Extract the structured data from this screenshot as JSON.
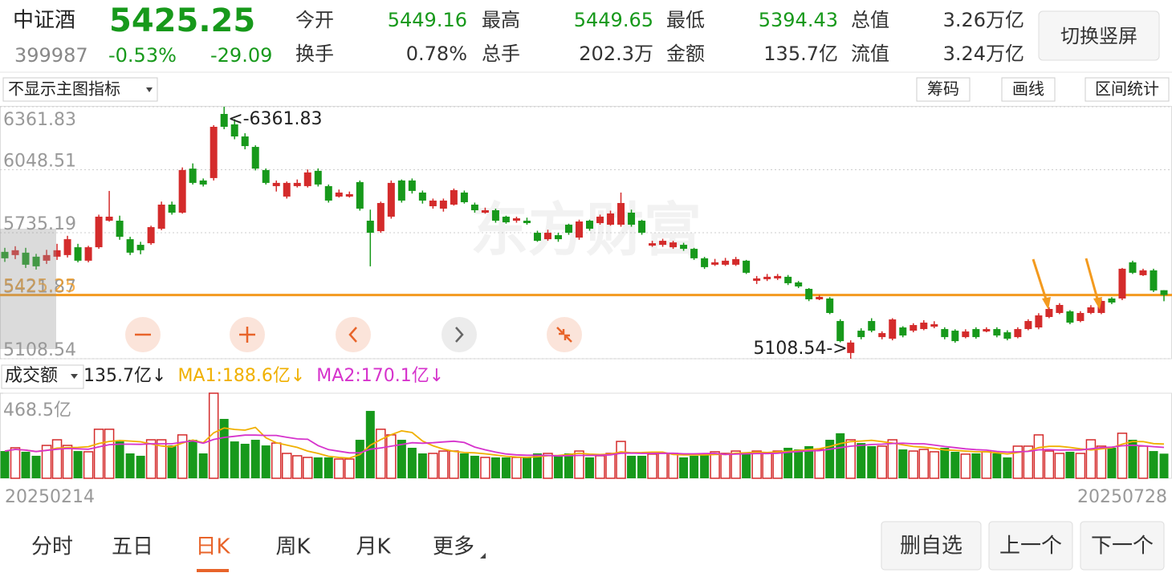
{
  "header": {
    "name": "中证酒",
    "price": "5425.25",
    "code": "399987",
    "change_pct": "-0.53%",
    "change": "-29.09",
    "stats": [
      [
        "今开",
        "5449.16"
      ],
      [
        "最高",
        "5449.65"
      ],
      [
        "最低",
        "5394.43"
      ],
      [
        "总值",
        "3.26万亿"
      ],
      [
        "换手",
        "0.78%"
      ],
      [
        "总手",
        "202.3万"
      ],
      [
        "金额",
        "135.7亿"
      ],
      [
        "流值",
        "3.24万亿"
      ]
    ],
    "button": "切换竖屏"
  },
  "toolbar": {
    "indicator": "不显示主图指标",
    "buttons": [
      "筹码",
      "画线",
      "区间统计"
    ]
  },
  "chart_data": [
    {
      "type": "candlestick",
      "watermark": "东方财富",
      "up_color": "#d42b2b",
      "down_color": "#17991b",
      "ylim": [
        5108.54,
        6361.83
      ],
      "yticks": [
        5108.54,
        5421.87,
        5735.19,
        6048.51,
        6361.83
      ],
      "grid": true,
      "price_line": {
        "value": 5425.25,
        "color": "#f39a1e"
      },
      "annotations": {
        "max": "<-6361.83",
        "min": "5108.54->"
      },
      "candles": [
        [
          5640,
          5660,
          5590,
          5608
        ],
        [
          5624,
          5668,
          5604,
          5648
        ],
        [
          5636,
          5660,
          5560,
          5576
        ],
        [
          5616,
          5630,
          5552,
          5568
        ],
        [
          5596,
          5650,
          5580,
          5624
        ],
        [
          5616,
          5680,
          5600,
          5648
        ],
        [
          5624,
          5720,
          5612,
          5703
        ],
        [
          5663,
          5680,
          5588,
          5596
        ],
        [
          5596,
          5670,
          5588,
          5663
        ],
        [
          5663,
          5825,
          5655,
          5815
        ],
        [
          5795,
          5943,
          5790,
          5815
        ],
        [
          5795,
          5820,
          5700,
          5715
        ],
        [
          5703,
          5715,
          5624,
          5636
        ],
        [
          5675,
          5690,
          5628,
          5648
        ],
        [
          5683,
          5770,
          5675,
          5763
        ],
        [
          5755,
          5890,
          5748,
          5875
        ],
        [
          5875,
          5890,
          5825,
          5835
        ],
        [
          5835,
          6060,
          5830,
          6047
        ],
        [
          6054,
          6080,
          5975,
          5983
        ],
        [
          5995,
          6005,
          5965,
          5975
        ],
        [
          6007,
          6270,
          5995,
          6262
        ],
        [
          6326,
          6361.83,
          6250,
          6262
        ],
        [
          6274,
          6300,
          6200,
          6214
        ],
        [
          6214,
          6230,
          6150,
          6166
        ],
        [
          6162,
          6170,
          6045,
          6054
        ],
        [
          6047,
          6055,
          5975,
          5983
        ],
        [
          5967,
          5995,
          5940,
          5983
        ],
        [
          5915,
          5990,
          5905,
          5983
        ],
        [
          5967,
          6000,
          5960,
          5983
        ],
        [
          5967,
          6050,
          5960,
          6035
        ],
        [
          6043,
          6055,
          5965,
          5975
        ],
        [
          5967,
          5975,
          5885,
          5895
        ],
        [
          5915,
          5950,
          5910,
          5935
        ],
        [
          5915,
          5940,
          5910,
          5927
        ],
        [
          5987,
          5995,
          5845,
          5855
        ],
        [
          5795,
          5850,
          5568,
          5735
        ],
        [
          5743,
          5890,
          5735,
          5883
        ],
        [
          5815,
          5995,
          5805,
          5983
        ],
        [
          5995,
          6000,
          5885,
          5895
        ],
        [
          5995,
          6005,
          5930,
          5943
        ],
        [
          5935,
          5945,
          5880,
          5895
        ],
        [
          5867,
          5905,
          5855,
          5895
        ],
        [
          5855,
          5905,
          5840,
          5895
        ],
        [
          5875,
          5955,
          5870,
          5947
        ],
        [
          5935,
          5945,
          5880,
          5887
        ],
        [
          5875,
          5885,
          5835,
          5847
        ],
        [
          5835,
          5860,
          5830,
          5847
        ],
        [
          5847,
          5855,
          5785,
          5795
        ],
        [
          5815,
          5820,
          5780,
          5787
        ],
        [
          5795,
          5815,
          5785,
          5807
        ],
        [
          5795,
          5810,
          5775,
          5783
        ],
        [
          5735,
          5745,
          5690,
          5695
        ],
        [
          5703,
          5750,
          5695,
          5735
        ],
        [
          5723,
          5735,
          5690,
          5703
        ],
        [
          5775,
          5780,
          5725,
          5735
        ],
        [
          5711,
          5800,
          5700,
          5791
        ],
        [
          5795,
          5800,
          5745,
          5755
        ],
        [
          5783,
          5825,
          5775,
          5815
        ],
        [
          5775,
          5845,
          5770,
          5831
        ],
        [
          5775,
          5935,
          5765,
          5883
        ],
        [
          5835,
          5850,
          5765,
          5775
        ],
        [
          5795,
          5800,
          5725,
          5735
        ],
        [
          5671,
          5695,
          5665,
          5683
        ],
        [
          5675,
          5705,
          5665,
          5695
        ],
        [
          5663,
          5695,
          5655,
          5687
        ],
        [
          5675,
          5685,
          5645,
          5655
        ],
        [
          5655,
          5660,
          5600,
          5608
        ],
        [
          5608,
          5615,
          5555,
          5564
        ],
        [
          5576,
          5605,
          5570,
          5588
        ],
        [
          5576,
          5610,
          5570,
          5596
        ],
        [
          5576,
          5615,
          5570,
          5604
        ],
        [
          5596,
          5600,
          5530,
          5536
        ],
        [
          5496,
          5520,
          5480,
          5508
        ],
        [
          5504,
          5530,
          5495,
          5516
        ],
        [
          5508,
          5530,
          5500,
          5520
        ],
        [
          5516,
          5525,
          5475,
          5484
        ],
        [
          5488,
          5495,
          5460,
          5468
        ],
        [
          5456,
          5460,
          5395,
          5404
        ],
        [
          5404,
          5425,
          5400,
          5416
        ],
        [
          5408,
          5415,
          5330,
          5336
        ],
        [
          5296,
          5305,
          5190,
          5196
        ],
        [
          5137,
          5200,
          5108.54,
          5189
        ],
        [
          5248,
          5260,
          5205,
          5216
        ],
        [
          5296,
          5310,
          5240,
          5248
        ],
        [
          5216,
          5245,
          5205,
          5236
        ],
        [
          5208,
          5310,
          5200,
          5304
        ],
        [
          5264,
          5270,
          5215,
          5224
        ],
        [
          5248,
          5285,
          5240,
          5276
        ],
        [
          5256,
          5300,
          5250,
          5288
        ],
        [
          5268,
          5295,
          5260,
          5280
        ],
        [
          5256,
          5265,
          5205,
          5216
        ],
        [
          5248,
          5255,
          5188,
          5196
        ],
        [
          5216,
          5255,
          5210,
          5244
        ],
        [
          5256,
          5265,
          5208,
          5216
        ],
        [
          5244,
          5265,
          5240,
          5256
        ],
        [
          5256,
          5265,
          5215,
          5224
        ],
        [
          5240,
          5250,
          5200,
          5208
        ],
        [
          5216,
          5265,
          5210,
          5256
        ],
        [
          5256,
          5305,
          5250,
          5296
        ],
        [
          5264,
          5335,
          5255,
          5324
        ],
        [
          5316,
          5365,
          5310,
          5356
        ],
        [
          5336,
          5385,
          5330,
          5376
        ],
        [
          5344,
          5350,
          5280,
          5288
        ],
        [
          5296,
          5345,
          5290,
          5336
        ],
        [
          5336,
          5375,
          5330,
          5364
        ],
        [
          5336,
          5405,
          5330,
          5396
        ],
        [
          5408,
          5415,
          5380,
          5388
        ],
        [
          5408,
          5560,
          5400,
          5556
        ],
        [
          5588,
          5596,
          5530,
          5536
        ],
        [
          5524,
          5556,
          5520,
          5548
        ],
        [
          5548,
          5556,
          5440,
          5448
        ],
        [
          5449.16,
          5449.65,
          5394.43,
          5425.25
        ]
      ]
    },
    {
      "type": "bar",
      "indicator": "成交额",
      "current": "135.7亿↓",
      "ylim": [
        0,
        468.5
      ],
      "yticks": [
        {
          "value": 468.5,
          "label": "468.5亿"
        }
      ],
      "categories": [
        "20250214",
        null,
        null,
        null,
        null,
        null,
        null,
        null,
        null,
        null,
        null,
        null,
        null,
        null,
        null,
        null,
        null,
        null,
        null,
        null,
        null,
        null,
        null,
        null,
        null,
        null,
        null,
        null,
        null,
        null,
        null,
        null,
        null,
        null,
        null,
        null,
        null,
        null,
        null,
        null,
        null,
        null,
        null,
        null,
        null,
        null,
        null,
        null,
        null,
        null,
        null,
        null,
        null,
        null,
        null,
        null,
        null,
        null,
        null,
        null,
        null,
        null,
        null,
        null,
        null,
        null,
        null,
        null,
        null,
        null,
        null,
        null,
        null,
        null,
        null,
        null,
        null,
        null,
        null,
        null,
        null,
        null,
        null,
        null,
        null,
        null,
        null,
        null,
        null,
        null,
        null,
        null,
        null,
        null,
        null,
        null,
        null,
        null,
        null,
        null,
        null,
        null,
        null,
        null,
        null,
        null,
        null,
        null,
        null,
        null,
        null,
        "20250728"
      ],
      "values": [
        150,
        168,
        146,
        124,
        181,
        212,
        181,
        150,
        146,
        270,
        270,
        203,
        137,
        124,
        212,
        212,
        181,
        239,
        212,
        137,
        468.5,
        327,
        203,
        190,
        212,
        181,
        194,
        137,
        124,
        115,
        115,
        115,
        106,
        106,
        212,
        371,
        270,
        239,
        212,
        168,
        137,
        137,
        150,
        150,
        137,
        124,
        115,
        115,
        115,
        115,
        115,
        137,
        137,
        128,
        137,
        150,
        115,
        124,
        137,
        203,
        124,
        124,
        133,
        137,
        137,
        115,
        124,
        133,
        146,
        137,
        150,
        137,
        150,
        137,
        150,
        168,
        159,
        177,
        159,
        212,
        248,
        212,
        194,
        177,
        177,
        212,
        159,
        150,
        159,
        146,
        168,
        146,
        133,
        137,
        146,
        137,
        115,
        177,
        177,
        239,
        150,
        137,
        146,
        137,
        212,
        177,
        168,
        248,
        212,
        177,
        150,
        135.7
      ],
      "series": [
        {
          "name": "MA1:188.6亿↓",
          "color": "#f0b000",
          "values": [
            150,
            159,
            155,
            147,
            154,
            166,
            169,
            170,
            174,
            192,
            203,
            208,
            205,
            201,
            189,
            178,
            173,
            194,
            211,
            196,
            250,
            277,
            269,
            265,
            280,
            223,
            196,
            183,
            170,
            150,
            137,
            121,
            115,
            111,
            131,
            182,
            213,
            240,
            261,
            252,
            205,
            179,
            161,
            148,
            142,
            140,
            135,
            128,
            121,
            117,
            115,
            119,
            124,
            126,
            131,
            138,
            133,
            131,
            133,
            146,
            141,
            142,
            144,
            144,
            131,
            129,
            129,
            129,
            131,
            131,
            138,
            141,
            144,
            142,
            145,
            148,
            153,
            158,
            163,
            175,
            191,
            202,
            205,
            209,
            202,
            194,
            184,
            175,
            171,
            165,
            156,
            154,
            150,
            146,
            146,
            140,
            134,
            142,
            150,
            169,
            176,
            176,
            170,
            162,
            156,
            162,
            168,
            188,
            203,
            202,
            191,
            188.6
          ]
        },
        {
          "name": "MA2:170.1亿↓",
          "color": "#d633cc",
          "values": [
            150,
            159,
            155,
            147,
            154,
            160,
            164,
            162,
            160,
            173,
            185,
            188,
            188,
            187,
            190,
            190,
            190,
            199,
            206,
            193,
            214,
            225,
            231,
            238,
            238,
            236,
            236,
            226,
            217,
            215,
            180,
            158,
            149,
            140,
            140,
            160,
            167,
            177,
            186,
            196,
            193,
            196,
            200,
            204,
            197,
            172,
            157,
            144,
            134,
            129,
            127,
            127,
            126,
            123,
            124,
            126,
            126,
            127,
            129,
            138,
            139,
            137,
            137,
            138,
            138,
            135,
            135,
            136,
            137,
            131,
            133,
            135,
            136,
            136,
            138,
            143,
            147,
            151,
            152,
            160,
            169,
            177,
            181,
            186,
            188,
            192,
            193,
            190,
            190,
            183,
            175,
            169,
            162,
            158,
            155,
            148,
            144,
            146,
            148,
            157,
            158,
            155,
            156,
            156,
            162,
            169,
            172,
            179,
            182,
            179,
            174,
            170.1
          ]
        }
      ]
    }
  ],
  "tabs": {
    "items": [
      "分时",
      "五日",
      "日K",
      "周K",
      "月K",
      "更多"
    ],
    "active": 2
  },
  "actions": [
    "删自选",
    "上一个",
    "下一个"
  ]
}
